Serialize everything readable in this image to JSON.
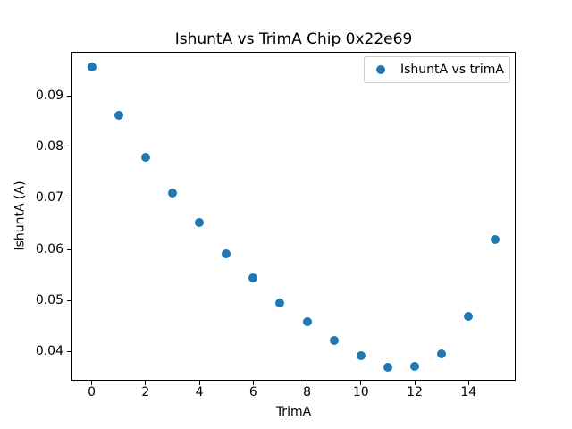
{
  "chart_data": {
    "type": "scatter",
    "title": "IshuntA vs TrimA Chip 0x22e69",
    "xlabel": "TrimA",
    "ylabel": "IshuntA (A)",
    "series": [
      {
        "name": "IshuntA vs trimA",
        "x": [
          0,
          1,
          2,
          3,
          4,
          5,
          6,
          7,
          8,
          9,
          10,
          11,
          12,
          13,
          14,
          15
        ],
        "y": [
          0.0957,
          0.0862,
          0.0781,
          0.0711,
          0.0652,
          0.0592,
          0.0545,
          0.0496,
          0.0459,
          0.0423,
          0.0392,
          0.0371,
          0.0372,
          0.0397,
          0.0469,
          0.062
        ]
      }
    ],
    "xlim": [
      -0.75,
      15.75
    ],
    "ylim": [
      0.0344,
      0.0986
    ],
    "xticks": [
      0,
      2,
      4,
      6,
      8,
      10,
      12,
      14
    ],
    "yticks": [
      0.04,
      0.05,
      0.06,
      0.07,
      0.08,
      0.09
    ],
    "ytick_labels": [
      "0.04",
      "0.05",
      "0.06",
      "0.07",
      "0.08",
      "0.09"
    ],
    "grid": false,
    "legend": {
      "location": "upper right",
      "entries": [
        "IshuntA vs trimA"
      ]
    },
    "marker_color": "#1f77b4",
    "background_color": "#ffffff",
    "text_color": "#000000"
  }
}
